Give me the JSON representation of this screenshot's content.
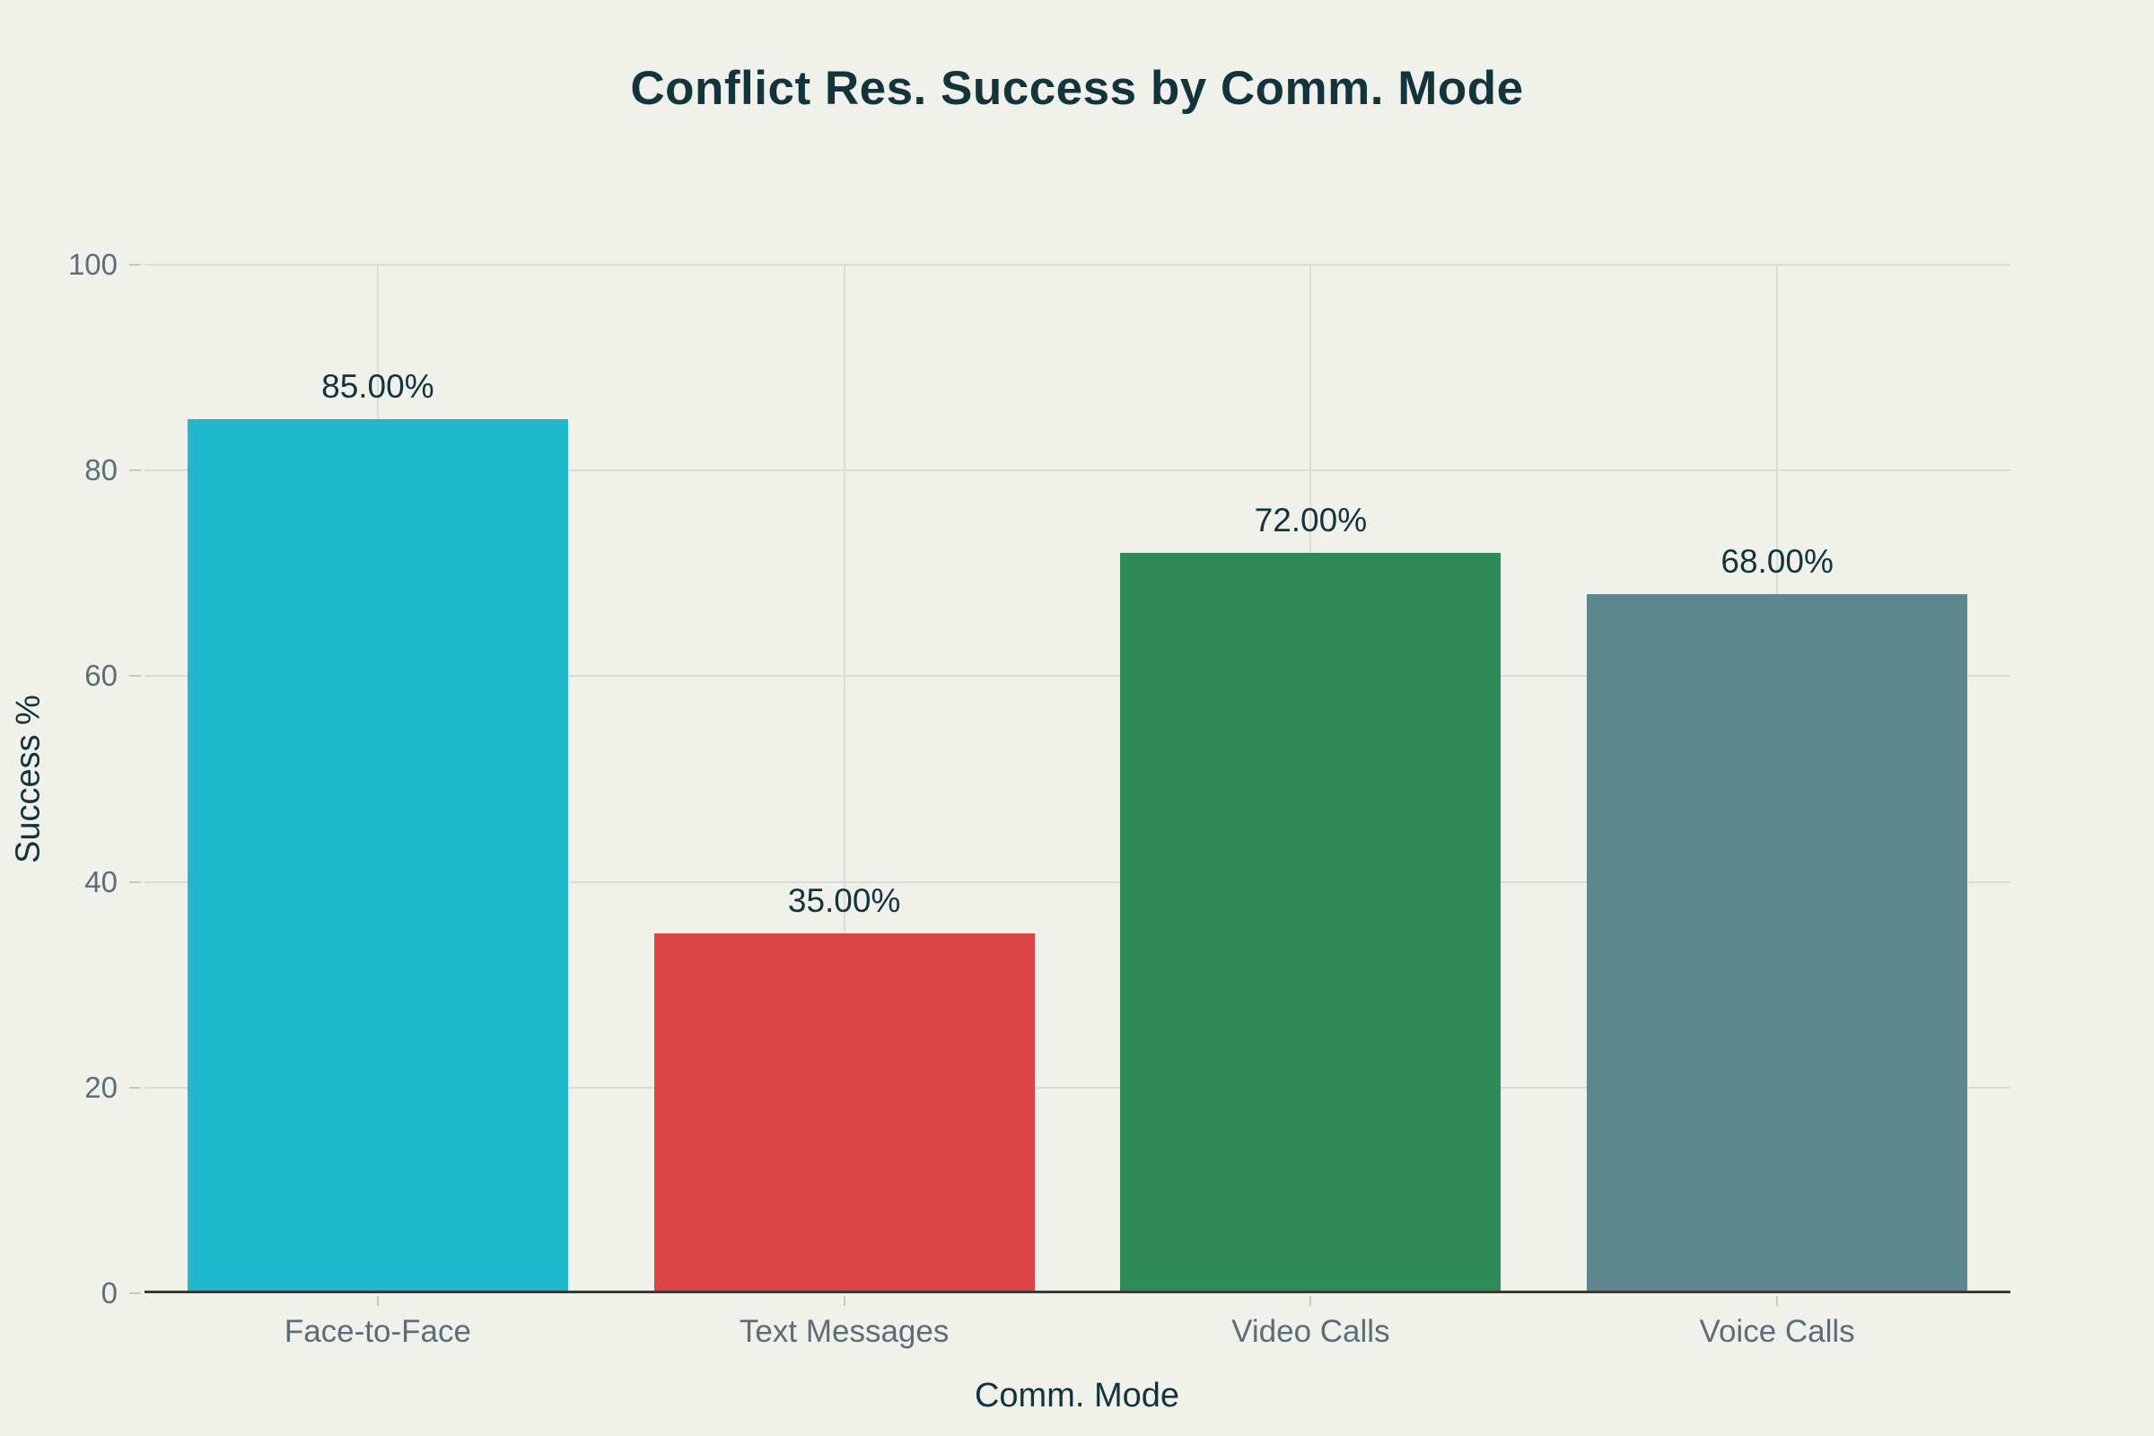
{
  "chart_data": {
    "type": "bar",
    "title": "Conflict Res. Success by Comm. Mode",
    "xlabel": "Comm. Mode",
    "ylabel": "Success %",
    "categories": [
      "Face-to-Face",
      "Text Messages",
      "Video Calls",
      "Voice Calls"
    ],
    "values": [
      85,
      35,
      72,
      68
    ],
    "value_labels": [
      "85.00%",
      "35.00%",
      "72.00%",
      "68.00%"
    ],
    "bar_colors": [
      "#1FB8CD",
      "#DB4545",
      "#2E8B57",
      "#5D878F"
    ],
    "ylim": [
      0,
      100
    ],
    "yticks": [
      0,
      20,
      40,
      60,
      80,
      100
    ],
    "grid": true,
    "legend": "none",
    "colors": {
      "background": "#F1F1EC",
      "title_text": "#13343B",
      "axis_title_text": "#13343B",
      "value_label_text": "#13343B",
      "tick_text": "#5D6D75",
      "gridline": "#DCDCD5",
      "tick_mark": "#C8C8C0",
      "axis_line": "#3A3A34"
    }
  }
}
